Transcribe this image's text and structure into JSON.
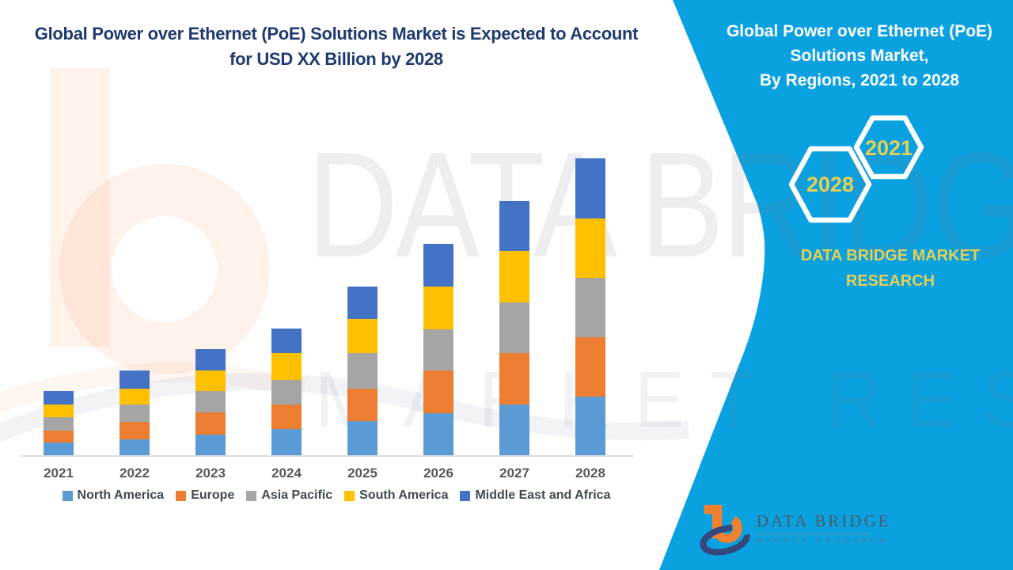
{
  "page": {
    "background": "#FFFFFF"
  },
  "colors": {
    "panel_blue": "#0AA1E0",
    "title_navy": "#1E3A6E",
    "gold": "#E6CF52",
    "axis_label_gray": "#595959",
    "legend_text": "#3F4A52",
    "axis_line": "#DBDBDB",
    "logo_orange": "#F08130",
    "logo_navy": "#35487E"
  },
  "left_panel": {
    "title_line1": "Global Power over Ethernet (PoE) Solutions Market is Expected to Account",
    "title_line2": "for USD XX Billion by 2028"
  },
  "right_panel": {
    "title_line1": "Global Power over Ethernet (PoE)",
    "title_line2": "Solutions Market,",
    "title_line3": "By Regions, 2021 to 2028",
    "hexagon_year_large": "2028",
    "hexagon_year_small": "2021",
    "brand_line1": "DATA BRIDGE MARKET",
    "brand_line2": "RESEARCH"
  },
  "logo": {
    "name": "DATA BRIDGE",
    "subtitle": "MARKET RESEARCH"
  },
  "watermark": {
    "line1": "DATA BRIDGE",
    "line2": "MARKET RESEARCH"
  },
  "chart_data": {
    "type": "bar",
    "stacked": true,
    "title": "Global Power over Ethernet (PoE) Solutions Market, By Regions, 2021 to 2028",
    "xlabel": "",
    "ylabel": "",
    "value_note": "No numeric axis shown; market sized as 'USD XX Billion'. Values below are relative segment sizes estimated from bar heights (pixels).",
    "legend_position": "bottom",
    "grid": false,
    "categories": [
      "2021",
      "2022",
      "2023",
      "2024",
      "2025",
      "2026",
      "2027",
      "2028"
    ],
    "series": [
      {
        "name": "North America",
        "color": "#5B9BD5",
        "values": [
          17,
          21.5,
          27.5,
          34.5,
          44,
          54.5,
          65.5,
          75
        ]
      },
      {
        "name": "Europe",
        "color": "#ED7D31",
        "values": [
          15,
          21.5,
          27.5,
          31,
          41.5,
          53.5,
          65,
          75.5
        ]
      },
      {
        "name": "Asia Pacific",
        "color": "#A5A5A5",
        "values": [
          17,
          22,
          27,
          30.5,
          45,
          52,
          63.5,
          75
        ]
      },
      {
        "name": "South America",
        "color": "#FFC000",
        "values": [
          16.5,
          20.5,
          26,
          34.5,
          42.5,
          54.5,
          65.5,
          74.5
        ]
      },
      {
        "name": "Middle East and Africa",
        "color": "#4472C4",
        "values": [
          16.5,
          22.5,
          27,
          31,
          41.5,
          54,
          62.5,
          76
        ]
      }
    ],
    "totals": [
      82,
      108,
      135,
      161.5,
      214.5,
      268.5,
      322,
      376
    ]
  }
}
